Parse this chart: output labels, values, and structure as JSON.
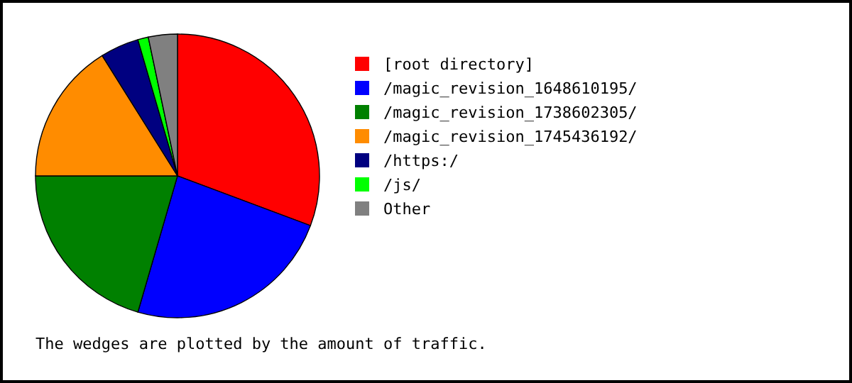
{
  "chart_data": {
    "type": "pie",
    "categories": [
      "[root directory]",
      "/magic_revision_1648610195/",
      "/magic_revision_1738602305/",
      "/magic_revision_1745436192/",
      "/https:/",
      "/js/",
      "Other"
    ],
    "values": [
      30.7,
      23.8,
      20.5,
      16.1,
      4.4,
      1.2,
      3.3
    ],
    "colors": [
      "#ff0000",
      "#0000ff",
      "#008000",
      "#ff8c00",
      "#000080",
      "#00ff00",
      "#808080"
    ],
    "legend": "right",
    "annotations": [
      "The wedges are plotted by the amount of traffic."
    ]
  }
}
